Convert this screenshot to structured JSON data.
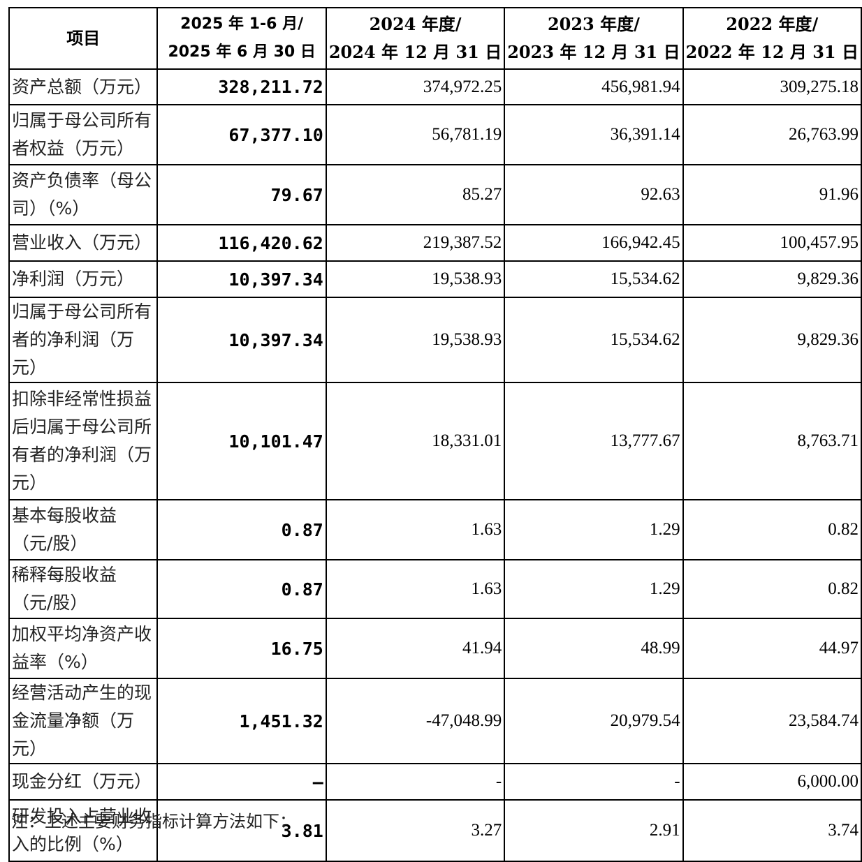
{
  "table": {
    "headers": [
      {
        "line1": "项目",
        "line2": ""
      },
      {
        "line1": "2025 年 1-6 月/",
        "line2": "2025 年 6 月 30 日"
      },
      {
        "line1": "2024 年度/",
        "line2": "2024 年 12 月 31 日"
      },
      {
        "line1": "2023 年度/",
        "line2": "2023 年 12 月 31 日"
      },
      {
        "line1": "2022 年度/",
        "line2": "2022 年 12 月 31 日"
      }
    ],
    "rows": [
      {
        "label": "资产总额（万元）",
        "v2025": "328,211.72",
        "v2024": "374,972.25",
        "v2023": "456,981.94",
        "v2022": "309,275.18"
      },
      {
        "label": "归属于母公司所有者权益（万元）",
        "v2025": "67,377.10",
        "v2024": "56,781.19",
        "v2023": "36,391.14",
        "v2022": "26,763.99"
      },
      {
        "label": "资产负债率（母公司）（%）",
        "v2025": "79.67",
        "v2024": "85.27",
        "v2023": "92.63",
        "v2022": "91.96"
      },
      {
        "label": "营业收入（万元）",
        "v2025": "116,420.62",
        "v2024": "219,387.52",
        "v2023": "166,942.45",
        "v2022": "100,457.95"
      },
      {
        "label": "净利润（万元）",
        "v2025": "10,397.34",
        "v2024": "19,538.93",
        "v2023": "15,534.62",
        "v2022": "9,829.36"
      },
      {
        "label": "归属于母公司所有者的净利润（万元）",
        "v2025": "10,397.34",
        "v2024": "19,538.93",
        "v2023": "15,534.62",
        "v2022": "9,829.36"
      },
      {
        "label": "扣除非经常性损益后归属于母公司所有者的净利润（万元）",
        "v2025": "10,101.47",
        "v2024": "18,331.01",
        "v2023": "13,777.67",
        "v2022": "8,763.71"
      },
      {
        "label": "基本每股收益（元/股）",
        "v2025": "0.87",
        "v2024": "1.63",
        "v2023": "1.29",
        "v2022": "0.82"
      },
      {
        "label": "稀释每股收益（元/股）",
        "v2025": "0.87",
        "v2024": "1.63",
        "v2023": "1.29",
        "v2022": "0.82"
      },
      {
        "label": "加权平均净资产收益率（%）",
        "v2025": "16.75",
        "v2024": "41.94",
        "v2023": "48.99",
        "v2022": "44.97"
      },
      {
        "label": "经营活动产生的现金流量净额（万元）",
        "v2025": "1,451.32",
        "v2024": "-47,048.99",
        "v2023": "20,979.54",
        "v2022": "23,584.74"
      },
      {
        "label": "现金分红（万元）",
        "v2025": "–",
        "v2024": "-",
        "v2023": "-",
        "v2022": "6,000.00"
      },
      {
        "label": "研发投入占营业收入的比例（%）",
        "v2025": "3.81",
        "v2024": "3.27",
        "v2023": "2.91",
        "v2022": "3.74"
      }
    ]
  },
  "note": "注：上述主要财务指标计算方法如下："
}
